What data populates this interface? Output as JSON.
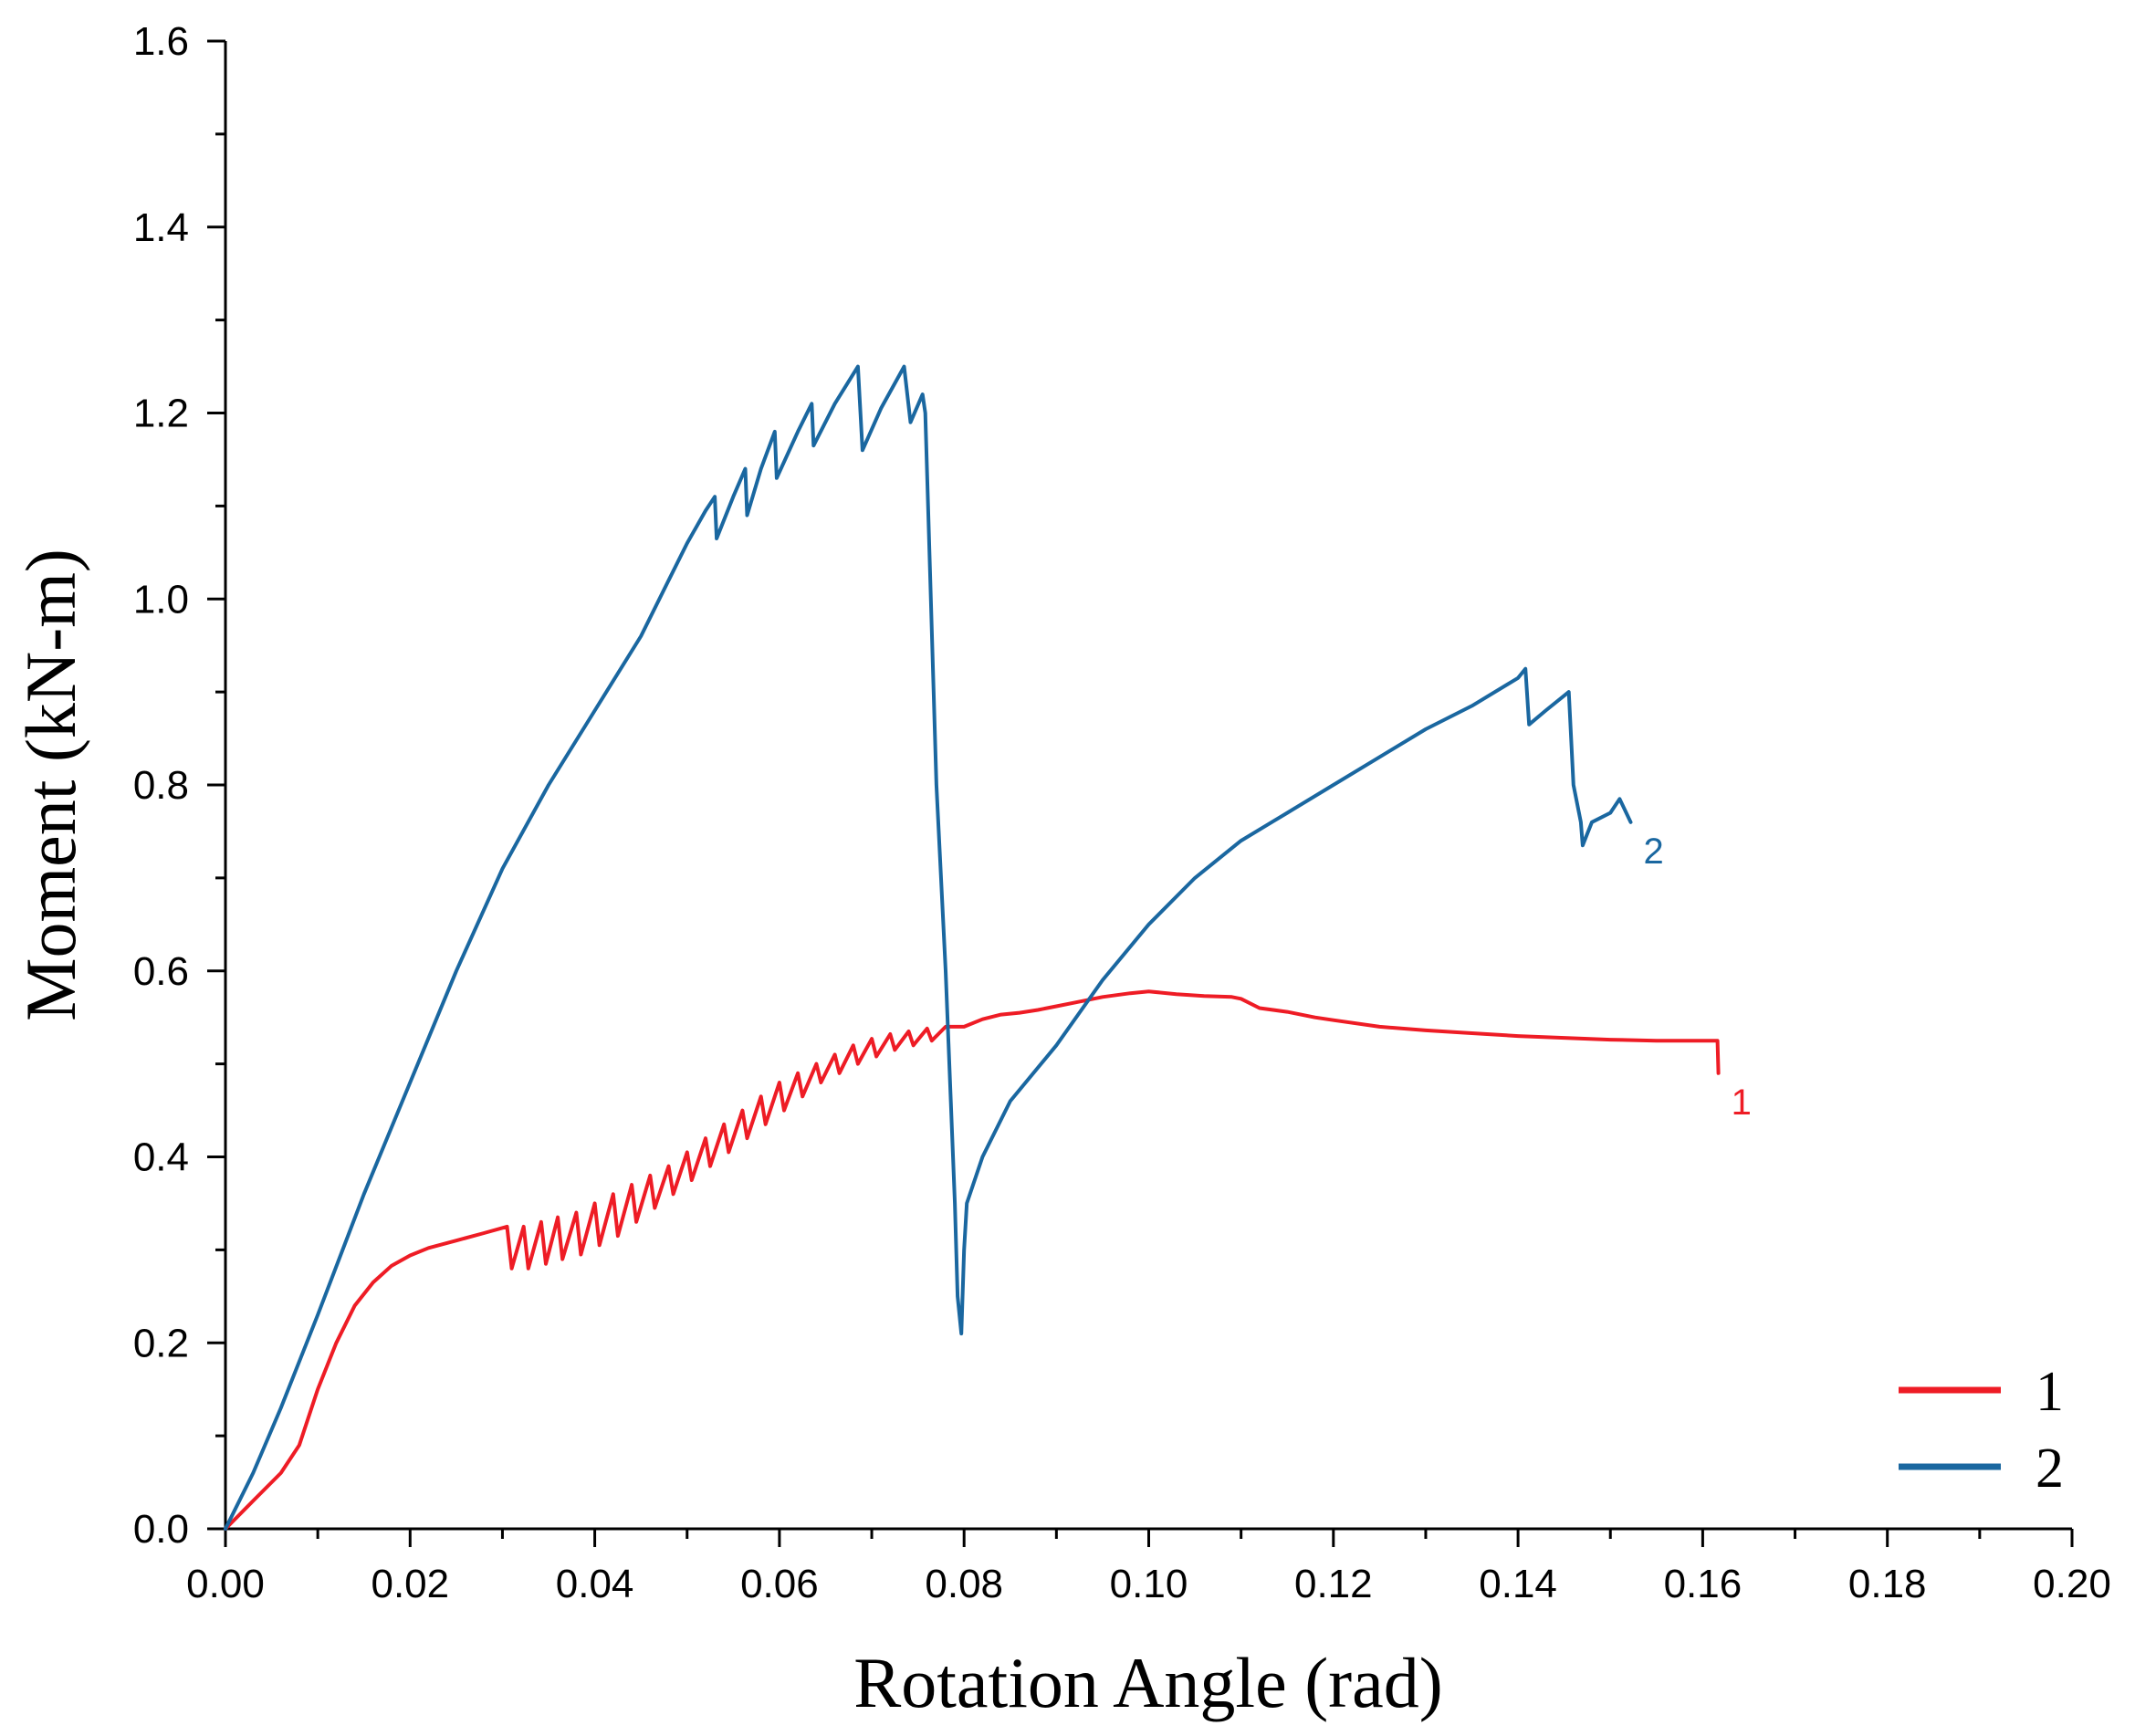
{
  "chart_data": {
    "type": "line",
    "title": "",
    "xlabel": "Rotation Angle (rad)",
    "ylabel": "Moment (kN-m)",
    "xlim": [
      0,
      0.2
    ],
    "ylim": [
      0,
      1.6
    ],
    "xticks": [
      "0.00",
      "0.02",
      "0.04",
      "0.06",
      "0.08",
      "0.10",
      "0.12",
      "0.14",
      "0.16",
      "0.18",
      "0.20"
    ],
    "yticks": [
      "0.0",
      "0.2",
      "0.4",
      "0.6",
      "0.8",
      "1.0",
      "1.2",
      "1.4",
      "1.6"
    ],
    "grid": false,
    "legend_position": "bottom-right",
    "series": [
      {
        "name": "1",
        "end_label": "1",
        "color": "#ee1c25",
        "points": [
          [
            0.0,
            0.0
          ],
          [
            0.003,
            0.03
          ],
          [
            0.006,
            0.06
          ],
          [
            0.008,
            0.09
          ],
          [
            0.01,
            0.15
          ],
          [
            0.012,
            0.2
          ],
          [
            0.014,
            0.24
          ],
          [
            0.016,
            0.265
          ],
          [
            0.018,
            0.283
          ],
          [
            0.02,
            0.294
          ],
          [
            0.022,
            0.302
          ],
          [
            0.025,
            0.31
          ],
          [
            0.028,
            0.318
          ],
          [
            0.0305,
            0.325
          ],
          [
            0.031,
            0.28
          ],
          [
            0.0323,
            0.325
          ],
          [
            0.0328,
            0.28
          ],
          [
            0.0342,
            0.33
          ],
          [
            0.0347,
            0.285
          ],
          [
            0.036,
            0.335
          ],
          [
            0.0365,
            0.29
          ],
          [
            0.038,
            0.34
          ],
          [
            0.0385,
            0.295
          ],
          [
            0.04,
            0.35
          ],
          [
            0.0405,
            0.305
          ],
          [
            0.042,
            0.36
          ],
          [
            0.0425,
            0.315
          ],
          [
            0.044,
            0.37
          ],
          [
            0.0445,
            0.33
          ],
          [
            0.046,
            0.38
          ],
          [
            0.0465,
            0.345
          ],
          [
            0.048,
            0.39
          ],
          [
            0.0485,
            0.36
          ],
          [
            0.05,
            0.405
          ],
          [
            0.0505,
            0.375
          ],
          [
            0.052,
            0.42
          ],
          [
            0.0525,
            0.39
          ],
          [
            0.054,
            0.435
          ],
          [
            0.0545,
            0.405
          ],
          [
            0.056,
            0.45
          ],
          [
            0.0565,
            0.42
          ],
          [
            0.058,
            0.465
          ],
          [
            0.0585,
            0.435
          ],
          [
            0.06,
            0.48
          ],
          [
            0.0605,
            0.45
          ],
          [
            0.062,
            0.49
          ],
          [
            0.0625,
            0.465
          ],
          [
            0.064,
            0.5
          ],
          [
            0.0645,
            0.48
          ],
          [
            0.066,
            0.51
          ],
          [
            0.0665,
            0.49
          ],
          [
            0.068,
            0.52
          ],
          [
            0.0685,
            0.5
          ],
          [
            0.07,
            0.527
          ],
          [
            0.0705,
            0.508
          ],
          [
            0.072,
            0.532
          ],
          [
            0.0725,
            0.515
          ],
          [
            0.074,
            0.535
          ],
          [
            0.0745,
            0.52
          ],
          [
            0.076,
            0.538
          ],
          [
            0.0765,
            0.525
          ],
          [
            0.078,
            0.54
          ],
          [
            0.08,
            0.54
          ],
          [
            0.082,
            0.548
          ],
          [
            0.084,
            0.553
          ],
          [
            0.086,
            0.555
          ],
          [
            0.088,
            0.558
          ],
          [
            0.09,
            0.562
          ],
          [
            0.092,
            0.566
          ],
          [
            0.095,
            0.572
          ],
          [
            0.098,
            0.576
          ],
          [
            0.1,
            0.578
          ],
          [
            0.103,
            0.575
          ],
          [
            0.106,
            0.573
          ],
          [
            0.109,
            0.572
          ],
          [
            0.11,
            0.57
          ],
          [
            0.112,
            0.56
          ],
          [
            0.115,
            0.556
          ],
          [
            0.118,
            0.55
          ],
          [
            0.12,
            0.547
          ],
          [
            0.125,
            0.54
          ],
          [
            0.13,
            0.536
          ],
          [
            0.135,
            0.533
          ],
          [
            0.14,
            0.53
          ],
          [
            0.145,
            0.528
          ],
          [
            0.15,
            0.526
          ],
          [
            0.155,
            0.525
          ],
          [
            0.158,
            0.525
          ],
          [
            0.1616,
            0.525
          ],
          [
            0.1617,
            0.49
          ]
        ]
      },
      {
        "name": "2",
        "end_label": "2",
        "color": "#1a67a0",
        "points": [
          [
            0.0,
            0.0
          ],
          [
            0.003,
            0.06
          ],
          [
            0.006,
            0.13
          ],
          [
            0.01,
            0.23
          ],
          [
            0.015,
            0.36
          ],
          [
            0.02,
            0.48
          ],
          [
            0.025,
            0.6
          ],
          [
            0.03,
            0.71
          ],
          [
            0.035,
            0.8
          ],
          [
            0.04,
            0.88
          ],
          [
            0.045,
            0.96
          ],
          [
            0.048,
            1.02
          ],
          [
            0.05,
            1.06
          ],
          [
            0.052,
            1.095
          ],
          [
            0.053,
            1.11
          ],
          [
            0.0532,
            1.065
          ],
          [
            0.055,
            1.11
          ],
          [
            0.0563,
            1.14
          ],
          [
            0.0565,
            1.09
          ],
          [
            0.058,
            1.14
          ],
          [
            0.0595,
            1.18
          ],
          [
            0.0597,
            1.13
          ],
          [
            0.062,
            1.18
          ],
          [
            0.0635,
            1.21
          ],
          [
            0.0637,
            1.165
          ],
          [
            0.066,
            1.21
          ],
          [
            0.0685,
            1.25
          ],
          [
            0.069,
            1.16
          ],
          [
            0.071,
            1.205
          ],
          [
            0.0735,
            1.25
          ],
          [
            0.0742,
            1.19
          ],
          [
            0.0755,
            1.22
          ],
          [
            0.0758,
            1.2
          ],
          [
            0.077,
            0.8
          ],
          [
            0.078,
            0.6
          ],
          [
            0.079,
            0.35
          ],
          [
            0.0793,
            0.25
          ],
          [
            0.0797,
            0.21
          ],
          [
            0.08,
            0.3
          ],
          [
            0.0803,
            0.35
          ],
          [
            0.082,
            0.4
          ],
          [
            0.085,
            0.46
          ],
          [
            0.09,
            0.52
          ],
          [
            0.095,
            0.59
          ],
          [
            0.1,
            0.65
          ],
          [
            0.105,
            0.7
          ],
          [
            0.11,
            0.74
          ],
          [
            0.115,
            0.77
          ],
          [
            0.12,
            0.8
          ],
          [
            0.125,
            0.83
          ],
          [
            0.13,
            0.86
          ],
          [
            0.135,
            0.885
          ],
          [
            0.14,
            0.915
          ],
          [
            0.1408,
            0.925
          ],
          [
            0.1412,
            0.865
          ],
          [
            0.143,
            0.88
          ],
          [
            0.1455,
            0.9
          ],
          [
            0.146,
            0.8
          ],
          [
            0.1468,
            0.76
          ],
          [
            0.147,
            0.735
          ],
          [
            0.148,
            0.76
          ],
          [
            0.15,
            0.77
          ],
          [
            0.151,
            0.785
          ],
          [
            0.1522,
            0.76
          ]
        ]
      }
    ]
  }
}
